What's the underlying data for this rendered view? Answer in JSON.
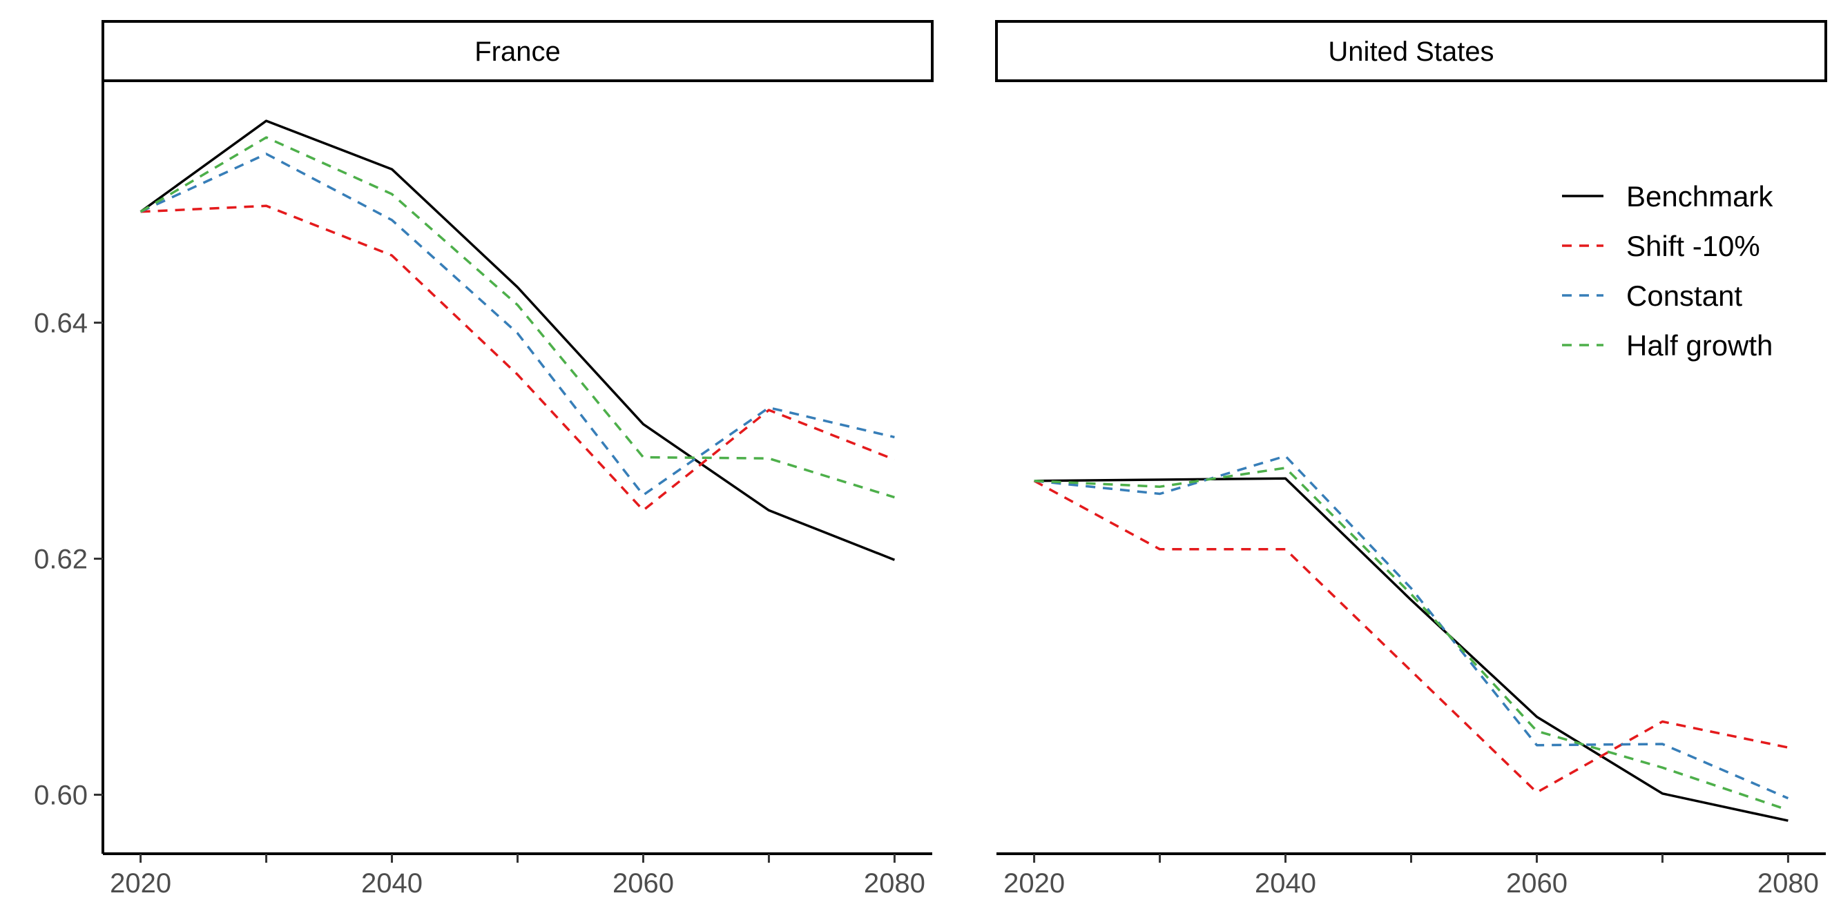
{
  "chart_data": {
    "type": "line",
    "facets": [
      {
        "title": "France",
        "series": [
          {
            "name": "Benchmark",
            "x": [
              2020,
              2030,
              2040,
              2050,
              2060,
              2070,
              2080
            ],
            "y": [
              0.6494,
              0.6571,
              0.653,
              0.643,
              0.6314,
              0.6241,
              0.6199
            ]
          },
          {
            "name": "Shift -10%",
            "x": [
              2020,
              2030,
              2040,
              2050,
              2060,
              2070,
              2080
            ],
            "y": [
              0.6494,
              0.6499,
              0.6457,
              0.6356,
              0.6241,
              0.6326,
              0.6284
            ]
          },
          {
            "name": "Constant",
            "x": [
              2020,
              2030,
              2040,
              2050,
              2060,
              2070,
              2080
            ],
            "y": [
              0.6494,
              0.6543,
              0.6487,
              0.6391,
              0.6254,
              0.6328,
              0.6303
            ]
          },
          {
            "name": "Half growth",
            "x": [
              2020,
              2030,
              2040,
              2050,
              2060,
              2070,
              2080
            ],
            "y": [
              0.6494,
              0.6557,
              0.6509,
              0.6415,
              0.6286,
              0.6285,
              0.6252
            ]
          }
        ]
      },
      {
        "title": "United States",
        "series": [
          {
            "name": "Benchmark",
            "x": [
              2020,
              2030,
              2040,
              2050,
              2060,
              2070,
              2080
            ],
            "y": [
              0.6266,
              0.6267,
              0.6268,
              0.6165,
              0.6066,
              0.6001,
              0.5978
            ]
          },
          {
            "name": "Shift -10%",
            "x": [
              2020,
              2030,
              2040,
              2050,
              2060,
              2070,
              2080
            ],
            "y": [
              0.6266,
              0.6208,
              0.6208,
              0.6105,
              0.6002,
              0.6062,
              0.604
            ]
          },
          {
            "name": "Constant",
            "x": [
              2020,
              2030,
              2040,
              2050,
              2060,
              2070,
              2080
            ],
            "y": [
              0.6266,
              0.6255,
              0.6287,
              0.6175,
              0.6042,
              0.6043,
              0.5997
            ]
          },
          {
            "name": "Half growth",
            "x": [
              2020,
              2030,
              2040,
              2050,
              2060,
              2070,
              2080
            ],
            "y": [
              0.6266,
              0.6261,
              0.6277,
              0.617,
              0.6054,
              0.6023,
              0.5987
            ]
          }
        ]
      }
    ],
    "xlim": [
      2017,
      2083
    ],
    "ylim": [
      0.595,
      0.6605
    ],
    "xticks": [
      2020,
      2040,
      2060,
      2080
    ],
    "xticks_minor": [
      2030,
      2050,
      2070
    ],
    "yticks": [
      0.6,
      0.62,
      0.64
    ],
    "ytick_labels": [
      "0.60",
      "0.62",
      "0.64"
    ],
    "xlabel": "",
    "ylabel": "",
    "grid": false,
    "legend": {
      "placement": "top-right",
      "entries": [
        {
          "name": "Benchmark",
          "color": "#000000",
          "dash": "solid"
        },
        {
          "name": "Shift -10%",
          "color": "#E41A1C",
          "dash": "dashed"
        },
        {
          "name": "Constant",
          "color": "#377EB8",
          "dash": "dashed"
        },
        {
          "name": "Half growth",
          "color": "#4DAF4A",
          "dash": "dashed"
        }
      ]
    }
  }
}
